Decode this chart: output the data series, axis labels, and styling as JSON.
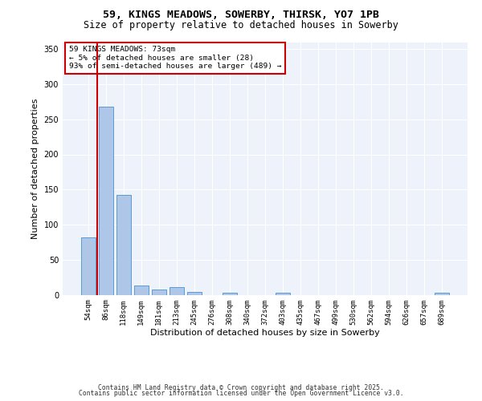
{
  "title1": "59, KINGS MEADOWS, SOWERBY, THIRSK, YO7 1PB",
  "title2": "Size of property relative to detached houses in Sowerby",
  "xlabel": "Distribution of detached houses by size in Sowerby",
  "ylabel": "Number of detached properties",
  "bin_labels": [
    "54sqm",
    "86sqm",
    "118sqm",
    "149sqm",
    "181sqm",
    "213sqm",
    "245sqm",
    "276sqm",
    "308sqm",
    "340sqm",
    "372sqm",
    "403sqm",
    "435sqm",
    "467sqm",
    "499sqm",
    "530sqm",
    "562sqm",
    "594sqm",
    "626sqm",
    "657sqm",
    "689sqm"
  ],
  "values": [
    82,
    268,
    142,
    13,
    7,
    11,
    4,
    0,
    3,
    0,
    0,
    3,
    0,
    0,
    0,
    0,
    0,
    0,
    0,
    0,
    3
  ],
  "bar_color": "#aec6e8",
  "bar_edge_color": "#5b9bd5",
  "bar_width": 0.8,
  "ylim": [
    0,
    360
  ],
  "yticks": [
    0,
    50,
    100,
    150,
    200,
    250,
    300,
    350
  ],
  "vline_color": "#cc0000",
  "annotation_text": "59 KINGS MEADOWS: 73sqm\n← 5% of detached houses are smaller (28)\n93% of semi-detached houses are larger (489) →",
  "annotation_box_color": "#cc0000",
  "bg_color": "#eef2fb",
  "footer_text1": "Contains HM Land Registry data © Crown copyright and database right 2025.",
  "footer_text2": "Contains public sector information licensed under the Open Government Licence v3.0.",
  "title_fontsize": 9.5,
  "subtitle_fontsize": 8.5,
  "tick_fontsize": 6.5,
  "axis_label_fontsize": 8,
  "footer_fontsize": 5.8
}
